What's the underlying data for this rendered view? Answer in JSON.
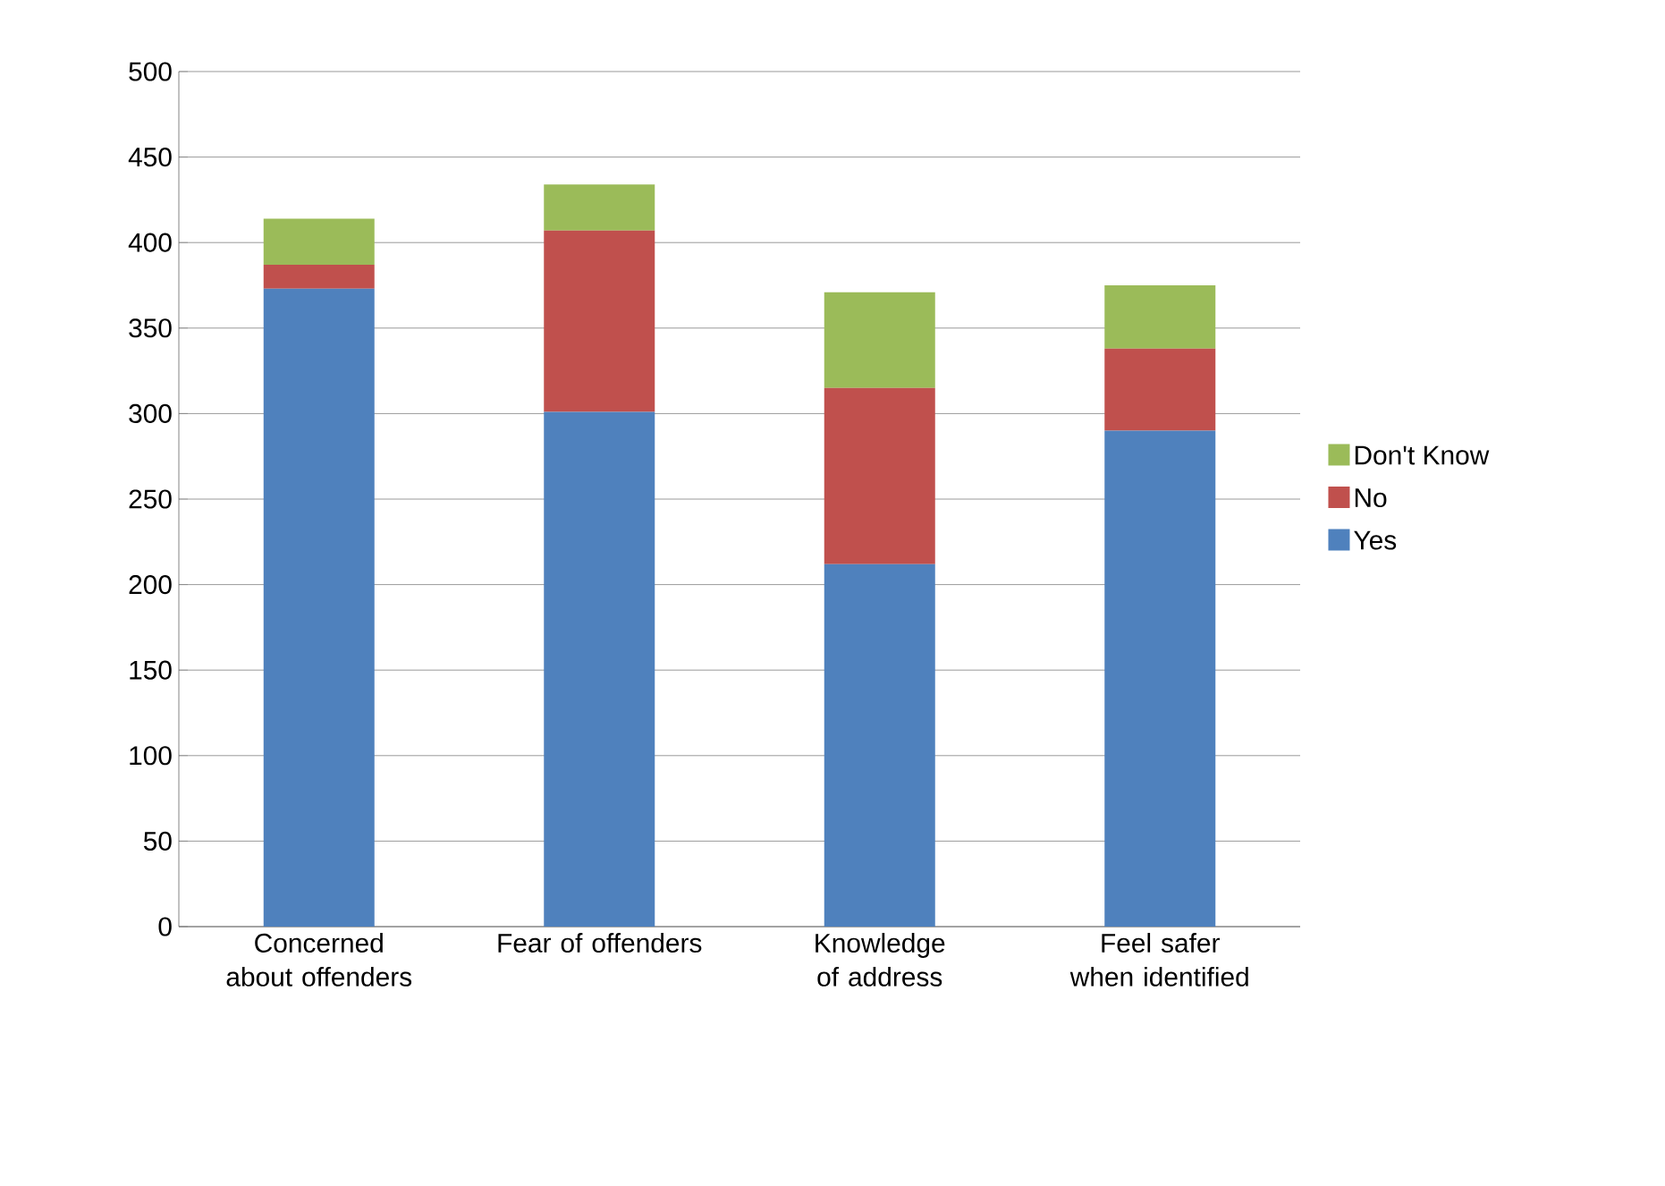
{
  "chart_data": {
    "type": "bar",
    "stacked": true,
    "categories": [
      "Concerned about offenders",
      "Fear of offenders",
      "Knowledge of address",
      "Feel safer when identified"
    ],
    "series": [
      {
        "name": "Yes",
        "color": "#4f81bd",
        "values": [
          373,
          301,
          212,
          290
        ]
      },
      {
        "name": "No",
        "color": "#c0504d",
        "values": [
          14,
          106,
          103,
          48
        ]
      },
      {
        "name": "Don't Know",
        "color": "#9bbb59",
        "values": [
          27,
          27,
          56,
          37
        ]
      }
    ],
    "ylim": [
      0,
      500
    ],
    "yticks": [
      0,
      50,
      100,
      150,
      200,
      250,
      300,
      350,
      400,
      450,
      500
    ],
    "grid": "y",
    "legend": "right"
  }
}
